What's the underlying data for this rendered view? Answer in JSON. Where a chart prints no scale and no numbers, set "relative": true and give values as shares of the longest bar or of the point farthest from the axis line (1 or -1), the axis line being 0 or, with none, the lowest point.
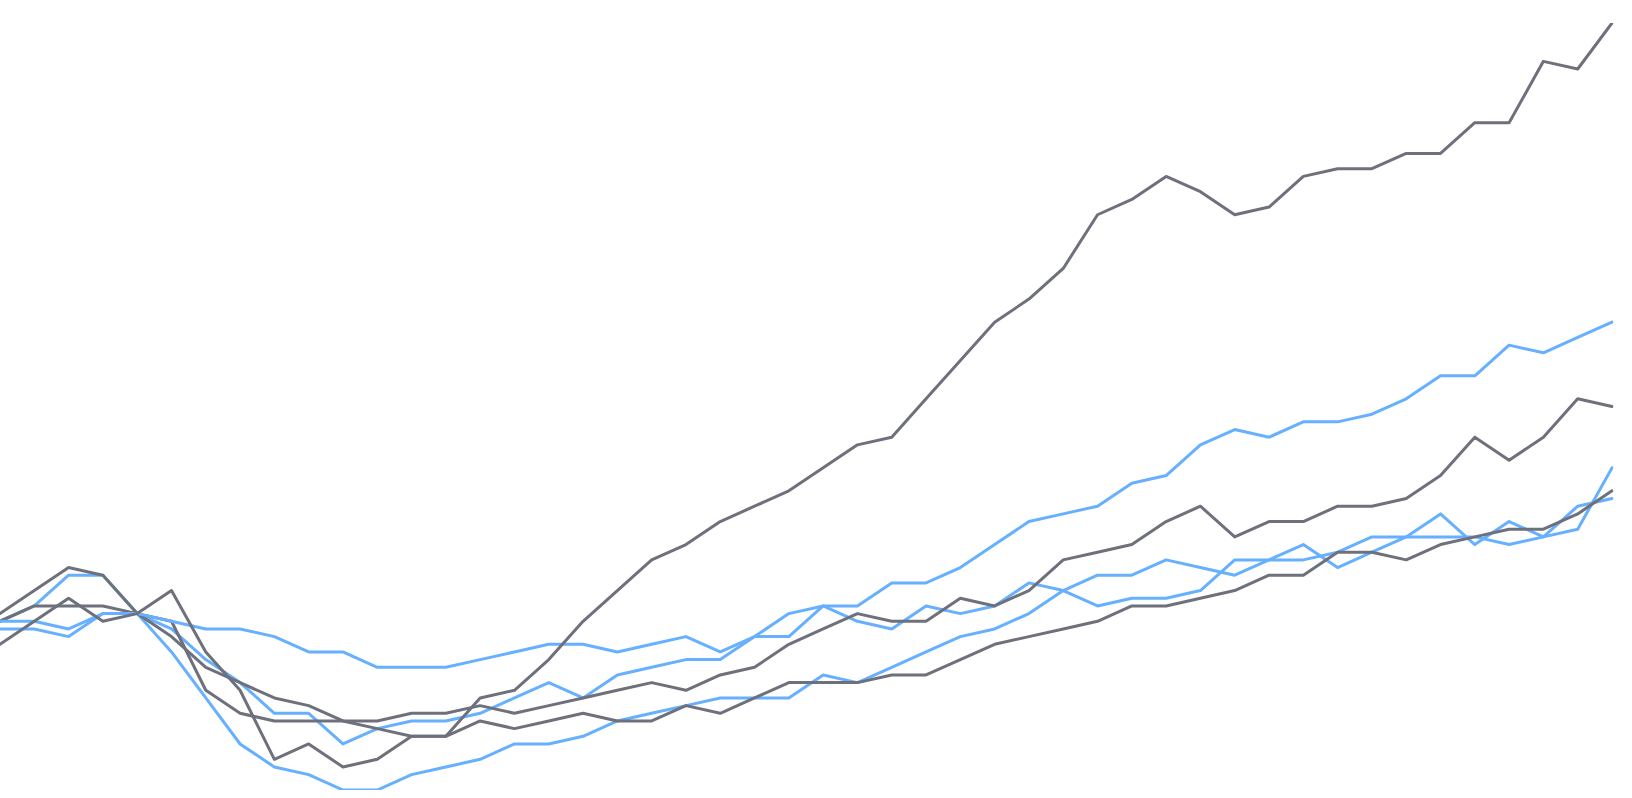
{
  "chart_data": {
    "type": "line",
    "relative": true,
    "legend": false,
    "marker": "none",
    "line_style": "solid",
    "categories": [
      null,
      null,
      null,
      null,
      null,
      null,
      null,
      null,
      null,
      null,
      null,
      null,
      null,
      null,
      null,
      null,
      null,
      null,
      null,
      null,
      null,
      null,
      null,
      null,
      null,
      null,
      null,
      null,
      null,
      null,
      null,
      null,
      null,
      null,
      null,
      null,
      null,
      null,
      null,
      null,
      null,
      null,
      null,
      null,
      null,
      null,
      null,
      null
    ],
    "series": [
      {
        "color": "#6e717c",
        "values": [
          0.19,
          0.22,
          0.25,
          0.22,
          0.23,
          0.26,
          0.18,
          0.13,
          0.04,
          0.06,
          0.03,
          0.04,
          0.07,
          0.07,
          0.12,
          0.13,
          0.17,
          0.22,
          0.26,
          0.3,
          0.32,
          0.35,
          0.37,
          0.39,
          0.42,
          0.45,
          0.46,
          0.51,
          0.56,
          0.61,
          0.64,
          0.68,
          0.75,
          0.77,
          0.8,
          0.78,
          0.75,
          0.76,
          0.8,
          0.81,
          0.81,
          0.83,
          0.83,
          0.87,
          0.87,
          0.95,
          0.94,
          1
        ]
      },
      {
        "color": "#66b0ff",
        "values": [
          0.22,
          0.22,
          0.21,
          0.23,
          0.23,
          0.22,
          0.21,
          0.21,
          0.2,
          0.18,
          0.18,
          0.16,
          0.16,
          0.16,
          0.17,
          0.18,
          0.19,
          0.19,
          0.18,
          0.19,
          0.2,
          0.18,
          0.2,
          0.23,
          0.24,
          0.24,
          0.27,
          0.27,
          0.29,
          0.32,
          0.35,
          0.36,
          0.37,
          0.4,
          0.41,
          0.45,
          0.47,
          0.46,
          0.48,
          0.48,
          0.49,
          0.51,
          0.54,
          0.54,
          0.58,
          0.57,
          0.59,
          0.61
        ]
      },
      {
        "color": "#6e717c",
        "values": [
          0.23,
          0.26,
          0.29,
          0.28,
          0.23,
          0.2,
          0.16,
          0.14,
          0.12,
          0.11,
          0.09,
          0.09,
          0.1,
          0.1,
          0.11,
          0.1,
          0.11,
          0.12,
          0.13,
          0.14,
          0.13,
          0.15,
          0.16,
          0.19,
          0.21,
          0.23,
          0.22,
          0.22,
          0.25,
          0.24,
          0.26,
          0.3,
          0.31,
          0.32,
          0.35,
          0.37,
          0.33,
          0.35,
          0.35,
          0.37,
          0.37,
          0.38,
          0.41,
          0.46,
          0.43,
          0.46,
          0.51,
          0.5
        ]
      },
      {
        "color": "#6e717c",
        "values": [
          0.22,
          0.24,
          0.24,
          0.24,
          0.23,
          0.22,
          0.13,
          0.1,
          0.09,
          0.09,
          0.09,
          0.08,
          0.07,
          0.07,
          0.09,
          0.08,
          0.09,
          0.1,
          0.09,
          0.09,
          0.11,
          0.1,
          0.12,
          0.14,
          0.14,
          0.14,
          0.15,
          0.15,
          0.17,
          0.19,
          0.2,
          0.21,
          0.22,
          0.24,
          0.24,
          0.25,
          0.26,
          0.28,
          0.28,
          0.31,
          0.31,
          0.3,
          0.32,
          0.33,
          0.34,
          0.34,
          0.36,
          0.39
        ]
      },
      {
        "color": "#66b0ff",
        "values": [
          0.21,
          0.21,
          0.2,
          0.23,
          0.23,
          0.21,
          0.17,
          0.14,
          0.1,
          0.1,
          0.06,
          0.08,
          0.09,
          0.09,
          0.1,
          0.12,
          0.14,
          0.12,
          0.15,
          0.16,
          0.17,
          0.17,
          0.2,
          0.2,
          0.24,
          0.22,
          0.21,
          0.24,
          0.23,
          0.24,
          0.27,
          0.26,
          0.24,
          0.25,
          0.25,
          0.26,
          0.3,
          0.3,
          0.3,
          0.31,
          0.33,
          0.33,
          0.33,
          0.33,
          0.32,
          0.33,
          0.37,
          0.38
        ]
      },
      {
        "color": "#66b0ff",
        "values": [
          0.22,
          0.24,
          0.28,
          0.28,
          0.23,
          0.18,
          0.12,
          0.06,
          0.03,
          0.02,
          0,
          0,
          0.02,
          0.03,
          0.04,
          0.06,
          0.06,
          0.07,
          0.09,
          0.1,
          0.11,
          0.12,
          0.12,
          0.12,
          0.15,
          0.14,
          0.16,
          0.18,
          0.2,
          0.21,
          0.23,
          0.26,
          0.28,
          0.28,
          0.3,
          0.29,
          0.28,
          0.3,
          0.32,
          0.29,
          0.31,
          0.33,
          0.36,
          0.32,
          0.35,
          0.33,
          0.34,
          0.42
        ]
      }
    ]
  }
}
